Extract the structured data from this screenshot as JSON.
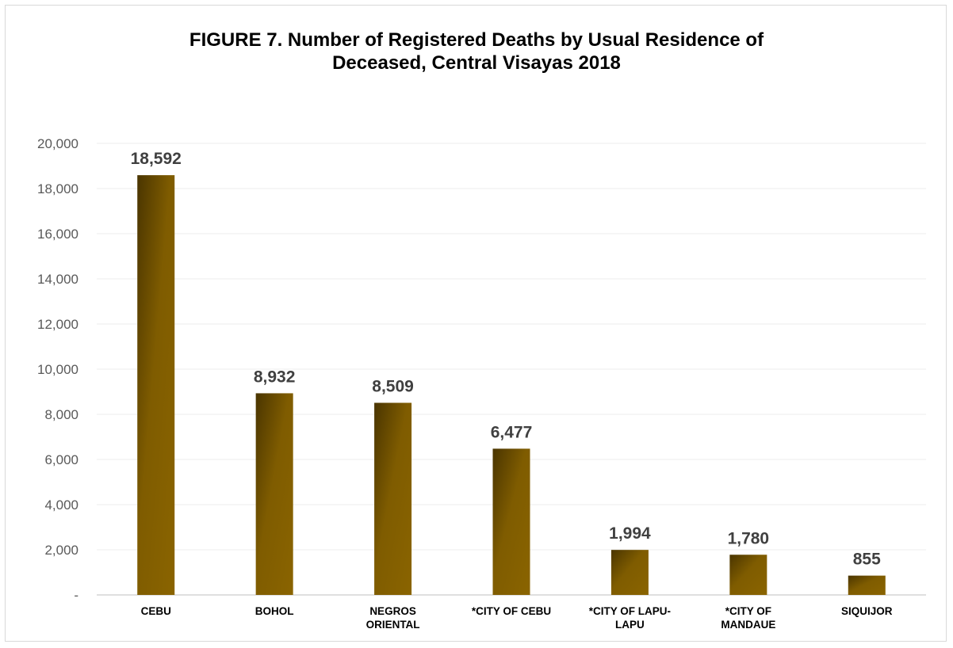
{
  "chart_data": {
    "type": "bar",
    "title_lines": [
      "FIGURE 7. Number of Registered Deaths by Usual Residence of",
      "Deceased, Central Visayas 2018"
    ],
    "categories": [
      [
        "CEBU"
      ],
      [
        "BOHOL"
      ],
      [
        "NEGROS",
        "ORIENTAL"
      ],
      [
        "*CITY OF CEBU"
      ],
      [
        "*CITY OF LAPU-",
        "LAPU"
      ],
      [
        "*CITY OF",
        "MANDAUE"
      ],
      [
        "SIQUIJOR"
      ]
    ],
    "values": [
      18592,
      8932,
      8509,
      6477,
      1994,
      1780,
      855
    ],
    "data_labels": [
      "18,592",
      "8,932",
      "8,509",
      "6,477",
      "1,994",
      "1,780",
      "855"
    ],
    "y_ticks": [
      0,
      2000,
      4000,
      6000,
      8000,
      10000,
      12000,
      14000,
      16000,
      18000,
      20000
    ],
    "y_tick_labels": [
      "-",
      "2,000",
      "4,000",
      "6,000",
      "8,000",
      "10,000",
      "12,000",
      "14,000",
      "16,000",
      "18,000",
      "20,000"
    ],
    "ylim": [
      0,
      20000
    ],
    "grid": true,
    "legend": "none",
    "bar_gradient": [
      "#4a3500",
      "#7f5c00",
      "#8a6400"
    ]
  }
}
